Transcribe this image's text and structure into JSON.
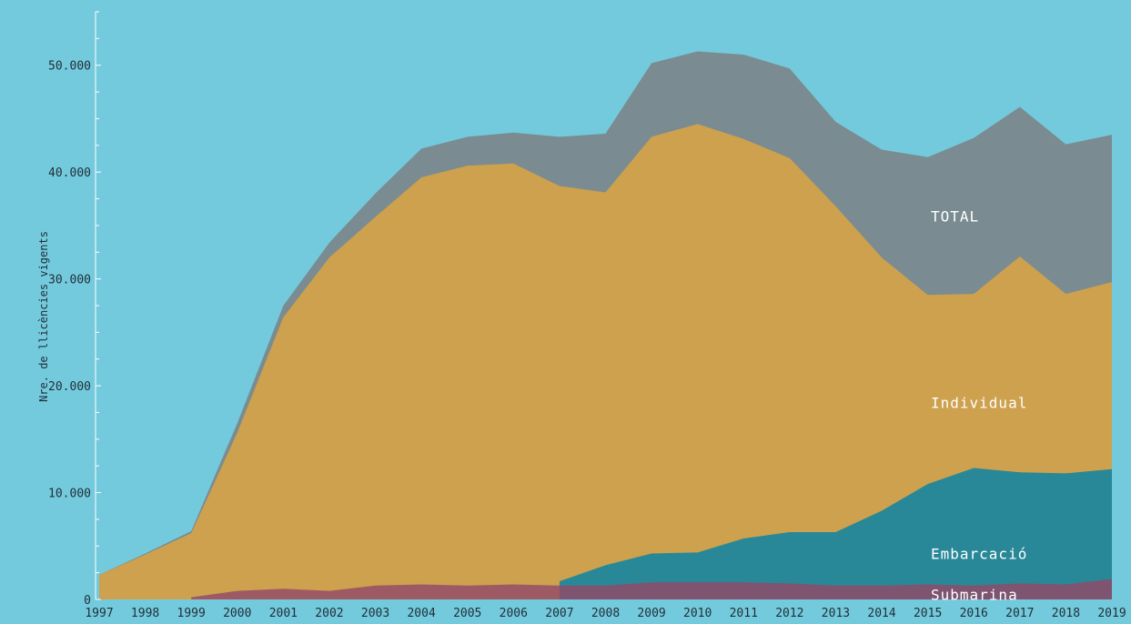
{
  "chart_data": {
    "type": "area",
    "title": "",
    "ylabel": "Nre. de llicències vigents",
    "xlabel": "",
    "x": [
      "1997",
      "1998",
      "1999",
      "2000",
      "2001",
      "2002",
      "2003",
      "2004",
      "2005",
      "2006",
      "2007",
      "2008",
      "2009",
      "2010",
      "2011",
      "2012",
      "2013",
      "2014",
      "2015",
      "2016",
      "2017",
      "2018",
      "2019"
    ],
    "ylim": [
      0,
      55000
    ],
    "yticks": [
      0,
      10000,
      20000,
      30000,
      40000,
      50000
    ],
    "ytick_labels": [
      "0",
      "10.000",
      "20.000",
      "30.000",
      "40.000",
      "50.000"
    ],
    "grid": false,
    "legend": "inline-right",
    "series": [
      {
        "name": "TOTAL",
        "color": "#7A8C91",
        "values": [
          2300,
          4300,
          6400,
          16500,
          27500,
          33400,
          38000,
          42200,
          43300,
          43700,
          43300,
          43600,
          50200,
          51300,
          51000,
          49700,
          44700,
          42100,
          41400,
          43200,
          46100,
          42600,
          43500
        ]
      },
      {
        "name": "Individual",
        "color": "#CDA14D",
        "values": [
          2300,
          4200,
          6200,
          15600,
          26400,
          32000,
          35800,
          39500,
          40600,
          40800,
          38700,
          38100,
          43300,
          44500,
          43100,
          41300,
          36800,
          32000,
          28500,
          28600,
          32100,
          28600,
          29700
        ]
      },
      {
        "name": "Embarcació",
        "color": "#288898",
        "values": [
          null,
          null,
          null,
          null,
          null,
          null,
          null,
          null,
          null,
          null,
          1700,
          3200,
          4300,
          4400,
          5700,
          6300,
          6300,
          8300,
          10800,
          12300,
          11900,
          11800,
          12200
        ]
      },
      {
        "name": "Submarina",
        "color": "#9E5A64",
        "overlap_color": "#7E5470",
        "values": [
          null,
          null,
          200,
          800,
          1000,
          800,
          1300,
          1400,
          1300,
          1400,
          1300,
          1300,
          1600,
          1600,
          1600,
          1500,
          1300,
          1300,
          1400,
          1300,
          1500,
          1400,
          1900
        ]
      }
    ]
  }
}
